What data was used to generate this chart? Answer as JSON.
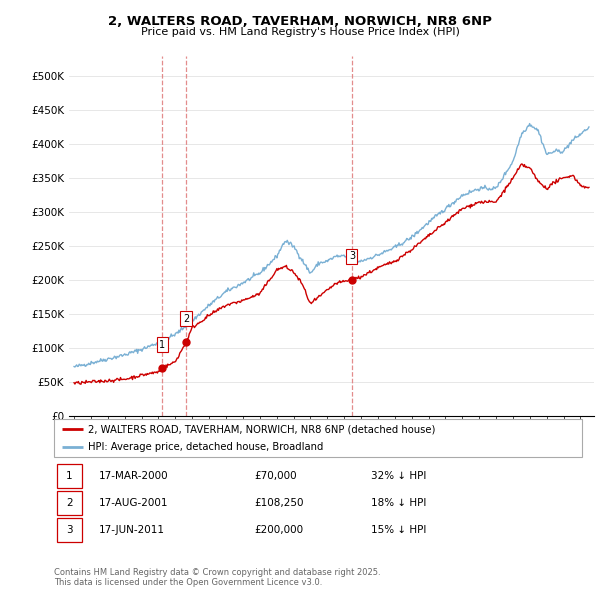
{
  "title1": "2, WALTERS ROAD, TAVERHAM, NORWICH, NR8 6NP",
  "title2": "Price paid vs. HM Land Registry's House Price Index (HPI)",
  "ylabel_ticks": [
    "£0",
    "£50K",
    "£100K",
    "£150K",
    "£200K",
    "£250K",
    "£300K",
    "£350K",
    "£400K",
    "£450K",
    "£500K"
  ],
  "ytick_values": [
    0,
    50000,
    100000,
    150000,
    200000,
    250000,
    300000,
    350000,
    400000,
    450000,
    500000
  ],
  "xlim_start": 1994.7,
  "xlim_end": 2025.8,
  "ylim": [
    0,
    530000
  ],
  "transaction_dates": [
    2000.21,
    2001.63,
    2011.46
  ],
  "transaction_prices": [
    70000,
    108250,
    200000
  ],
  "transaction_labels": [
    "1",
    "2",
    "3"
  ],
  "legend_line1": "2, WALTERS ROAD, TAVERHAM, NORWICH, NR8 6NP (detached house)",
  "legend_line2": "HPI: Average price, detached house, Broadland",
  "table_rows": [
    {
      "num": "1",
      "date": "17-MAR-2000",
      "price": "£70,000",
      "pct": "32% ↓ HPI"
    },
    {
      "num": "2",
      "date": "17-AUG-2001",
      "price": "£108,250",
      "pct": "18% ↓ HPI"
    },
    {
      "num": "3",
      "date": "17-JUN-2011",
      "price": "£200,000",
      "pct": "15% ↓ HPI"
    }
  ],
  "footer": "Contains HM Land Registry data © Crown copyright and database right 2025.\nThis data is licensed under the Open Government Licence v3.0.",
  "line_color_red": "#cc0000",
  "line_color_blue": "#7ab0d4",
  "vline_color": "#e8a0a0",
  "background_color": "#ffffff",
  "grid_color": "#dddddd",
  "hpi_pts_x": [
    1995,
    1996,
    1997,
    1998,
    1999,
    2000,
    2001,
    2002,
    2003,
    2004,
    2005,
    2006,
    2007,
    2007.5,
    2008,
    2008.5,
    2009,
    2009.5,
    2010,
    2010.5,
    2011,
    2011.5,
    2012,
    2013,
    2014,
    2015,
    2016,
    2017,
    2018,
    2019,
    2020,
    2021,
    2021.5,
    2022,
    2022.5,
    2023,
    2023.5,
    2024,
    2024.5,
    2025,
    2025.5
  ],
  "hpi_pts_y": [
    72000,
    78000,
    84000,
    90000,
    98000,
    108000,
    120000,
    140000,
    163000,
    183000,
    196000,
    210000,
    235000,
    258000,
    250000,
    230000,
    210000,
    225000,
    228000,
    235000,
    235000,
    228000,
    228000,
    237000,
    248000,
    263000,
    285000,
    305000,
    325000,
    335000,
    335000,
    375000,
    415000,
    430000,
    420000,
    385000,
    390000,
    390000,
    405000,
    415000,
    425000
  ],
  "prop_pts_x": [
    1995,
    1996,
    1997,
    1998,
    1999,
    2000,
    2000.21,
    2001,
    2001.63,
    2002,
    2003,
    2004,
    2005,
    2006,
    2007,
    2007.5,
    2008,
    2008.5,
    2009,
    2009.5,
    2010,
    2010.5,
    2011,
    2011.46,
    2012,
    2013,
    2014,
    2015,
    2016,
    2017,
    2018,
    2019,
    2020,
    2021,
    2021.5,
    2022,
    2022.5,
    2023,
    2023.5,
    2024,
    2024.5,
    2025,
    2025.5
  ],
  "prop_pts_y": [
    48000,
    50000,
    52000,
    54000,
    60000,
    65000,
    70000,
    80000,
    108250,
    130000,
    148000,
    163000,
    170000,
    180000,
    215000,
    220000,
    212000,
    195000,
    165000,
    175000,
    185000,
    195000,
    198000,
    200000,
    205000,
    218000,
    228000,
    245000,
    265000,
    285000,
    305000,
    315000,
    315000,
    350000,
    370000,
    365000,
    345000,
    335000,
    345000,
    350000,
    355000,
    340000,
    335000
  ]
}
